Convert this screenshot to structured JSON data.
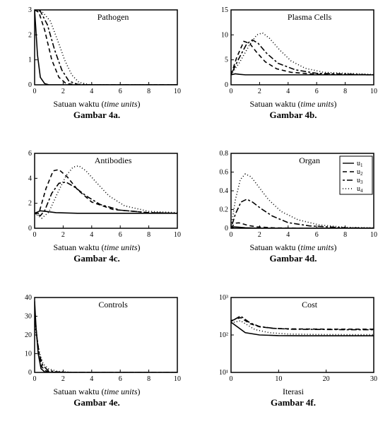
{
  "global": {
    "background": "#ffffff",
    "axis_color": "#000000",
    "tick_color": "#000000",
    "tick_font_size": 10,
    "title_font_size": 12,
    "label_font_size": 12,
    "line_width": 1.6,
    "series_styles": {
      "u1": {
        "color": "#000000",
        "dash": "",
        "label": "u₁"
      },
      "u2": {
        "color": "#000000",
        "dash": "6 4",
        "label": "u₂"
      },
      "u3": {
        "color": "#000000",
        "dash": "3 3 8 3",
        "label": "u₃"
      },
      "u4": {
        "color": "#000000",
        "dash": "1 3",
        "label": "u₄"
      }
    },
    "xlabel_regular": "Satuan waktu (",
    "xlabel_italic": "time units",
    "xlabel_close": ")",
    "xlabel_iterasi": "Iterasi"
  },
  "panels": {
    "a": {
      "title": "Pathogen",
      "caption": "Gambar 4a.",
      "xlim": [
        0,
        10
      ],
      "xtick_step": 2,
      "ylim": [
        0,
        3
      ],
      "ytick_step": 1,
      "xlabel_type": "time",
      "series": {
        "u1": [
          [
            0,
            3.0
          ],
          [
            0.2,
            1.2
          ],
          [
            0.4,
            0.3
          ],
          [
            0.7,
            0.05
          ],
          [
            1.0,
            0.0
          ],
          [
            2,
            0
          ],
          [
            10,
            0
          ]
        ],
        "u2": [
          [
            0,
            3.0
          ],
          [
            0.3,
            2.9
          ],
          [
            0.7,
            2.2
          ],
          [
            1.2,
            1.0
          ],
          [
            1.7,
            0.3
          ],
          [
            2.2,
            0.05
          ],
          [
            3,
            0
          ],
          [
            10,
            0
          ]
        ],
        "u3": [
          [
            0,
            3.0
          ],
          [
            0.4,
            2.95
          ],
          [
            0.9,
            2.4
          ],
          [
            1.4,
            1.4
          ],
          [
            1.9,
            0.6
          ],
          [
            2.4,
            0.15
          ],
          [
            3.0,
            0.02
          ],
          [
            4,
            0
          ],
          [
            10,
            0
          ]
        ],
        "u4": [
          [
            0,
            3.0
          ],
          [
            0.5,
            2.95
          ],
          [
            1.1,
            2.55
          ],
          [
            1.6,
            1.8
          ],
          [
            2.1,
            1.0
          ],
          [
            2.6,
            0.4
          ],
          [
            3.1,
            0.1
          ],
          [
            3.8,
            0.01
          ],
          [
            5,
            0
          ],
          [
            10,
            0
          ]
        ]
      }
    },
    "b": {
      "title": "Plasma Cells",
      "caption": "Gambar 4b.",
      "xlim": [
        0,
        10
      ],
      "xtick_step": 2,
      "ylim": [
        0,
        15
      ],
      "ytick_step": 5,
      "xlabel_type": "time",
      "series": {
        "u1": [
          [
            0,
            2.0
          ],
          [
            0.3,
            2.2
          ],
          [
            0.6,
            2.1
          ],
          [
            1,
            2.0
          ],
          [
            10,
            2.0
          ]
        ],
        "u2": [
          [
            0,
            2.0
          ],
          [
            0.4,
            5.5
          ],
          [
            0.9,
            8.7
          ],
          [
            1.3,
            8.3
          ],
          [
            1.8,
            6.5
          ],
          [
            2.4,
            4.6
          ],
          [
            3.2,
            3.2
          ],
          [
            4.2,
            2.5
          ],
          [
            6,
            2.1
          ],
          [
            10,
            2.0
          ]
        ],
        "u3": [
          [
            0,
            2.0
          ],
          [
            0.5,
            5.0
          ],
          [
            1.1,
            8.2
          ],
          [
            1.5,
            9.0
          ],
          [
            1.9,
            8.3
          ],
          [
            2.5,
            6.3
          ],
          [
            3.3,
            4.3
          ],
          [
            4.5,
            3.0
          ],
          [
            6,
            2.3
          ],
          [
            10,
            2.0
          ]
        ],
        "u4": [
          [
            0,
            2.0
          ],
          [
            0.6,
            4.5
          ],
          [
            1.3,
            8.0
          ],
          [
            1.8,
            10.0
          ],
          [
            2.2,
            10.4
          ],
          [
            2.7,
            9.3
          ],
          [
            3.4,
            7.0
          ],
          [
            4.2,
            4.8
          ],
          [
            5.2,
            3.3
          ],
          [
            6.5,
            2.5
          ],
          [
            10,
            2.05
          ]
        ]
      }
    },
    "c": {
      "title": "Antibodies",
      "caption": "Gambar 4c.",
      "xlim": [
        0,
        10
      ],
      "xtick_step": 2,
      "ylim": [
        0,
        6
      ],
      "ytick_step": 2,
      "xlabel_type": "time",
      "series": {
        "u1": [
          [
            0,
            1.2
          ],
          [
            0.4,
            1.4
          ],
          [
            0.8,
            1.35
          ],
          [
            1.5,
            1.25
          ],
          [
            3,
            1.2
          ],
          [
            10,
            1.2
          ]
        ],
        "u2": [
          [
            0,
            1.2
          ],
          [
            0.3,
            1.2
          ],
          [
            0.8,
            3.2
          ],
          [
            1.3,
            4.6
          ],
          [
            1.7,
            4.7
          ],
          [
            2.3,
            4.1
          ],
          [
            3.0,
            3.1
          ],
          [
            4.0,
            2.1
          ],
          [
            5.5,
            1.5
          ],
          [
            8,
            1.25
          ],
          [
            10,
            1.2
          ]
        ],
        "u3": [
          [
            0,
            1.2
          ],
          [
            0.4,
            1.0
          ],
          [
            0.7,
            1.4
          ],
          [
            1.2,
            2.8
          ],
          [
            1.7,
            3.6
          ],
          [
            2.2,
            3.7
          ],
          [
            2.8,
            3.3
          ],
          [
            3.6,
            2.6
          ],
          [
            4.6,
            1.9
          ],
          [
            6.0,
            1.45
          ],
          [
            8,
            1.25
          ],
          [
            10,
            1.2
          ]
        ],
        "u4": [
          [
            0,
            1.2
          ],
          [
            0.5,
            0.8
          ],
          [
            1.0,
            1.3
          ],
          [
            1.6,
            2.8
          ],
          [
            2.2,
            4.2
          ],
          [
            2.7,
            4.9
          ],
          [
            3.1,
            5.0
          ],
          [
            3.6,
            4.6
          ],
          [
            4.3,
            3.7
          ],
          [
            5.2,
            2.6
          ],
          [
            6.3,
            1.8
          ],
          [
            8,
            1.35
          ],
          [
            10,
            1.25
          ]
        ]
      }
    },
    "d": {
      "title": "Organ",
      "caption": "Gambar 4d.",
      "xlim": [
        0,
        10
      ],
      "xtick_step": 2,
      "ylim": [
        0,
        0.8
      ],
      "ytick_step": 0.2,
      "xlabel_type": "time",
      "show_legend": true,
      "series": {
        "u1": [
          [
            0,
            0.0
          ],
          [
            0.2,
            0.015
          ],
          [
            0.5,
            0.012
          ],
          [
            1,
            0.005
          ],
          [
            2,
            0.001
          ],
          [
            10,
            0
          ]
        ],
        "u2": [
          [
            0,
            0.0
          ],
          [
            0.15,
            0.03
          ],
          [
            0.35,
            0.055
          ],
          [
            0.55,
            0.058
          ],
          [
            0.8,
            0.048
          ],
          [
            1.2,
            0.03
          ],
          [
            1.8,
            0.015
          ],
          [
            3,
            0.004
          ],
          [
            5,
            0.001
          ],
          [
            10,
            0
          ]
        ],
        "u3": [
          [
            0,
            0.0
          ],
          [
            0.3,
            0.15
          ],
          [
            0.7,
            0.28
          ],
          [
            1.1,
            0.31
          ],
          [
            1.5,
            0.28
          ],
          [
            2.1,
            0.21
          ],
          [
            2.9,
            0.13
          ],
          [
            4.0,
            0.06
          ],
          [
            5.5,
            0.025
          ],
          [
            8,
            0.005
          ],
          [
            10,
            0.002
          ]
        ],
        "u4": [
          [
            0,
            0.0
          ],
          [
            0.3,
            0.3
          ],
          [
            0.65,
            0.52
          ],
          [
            1.0,
            0.58
          ],
          [
            1.4,
            0.55
          ],
          [
            1.9,
            0.45
          ],
          [
            2.6,
            0.31
          ],
          [
            3.5,
            0.18
          ],
          [
            4.7,
            0.09
          ],
          [
            6.2,
            0.035
          ],
          [
            8,
            0.01
          ],
          [
            10,
            0.004
          ]
        ]
      }
    },
    "e": {
      "title": "Controls",
      "caption": "Gambar 4e.",
      "xlim": [
        0,
        10
      ],
      "xtick_step": 2,
      "ylim": [
        0,
        40
      ],
      "ytick_step": 10,
      "xlabel_type": "time",
      "series": {
        "u1": [
          [
            0,
            38
          ],
          [
            0.1,
            24
          ],
          [
            0.25,
            10
          ],
          [
            0.45,
            2
          ],
          [
            0.7,
            0.3
          ],
          [
            1,
            0.05
          ],
          [
            2,
            0
          ],
          [
            10,
            0
          ]
        ],
        "u2": [
          [
            0,
            34
          ],
          [
            0.12,
            22
          ],
          [
            0.28,
            10
          ],
          [
            0.5,
            3
          ],
          [
            0.8,
            0.8
          ],
          [
            1.2,
            0.15
          ],
          [
            2,
            0.02
          ],
          [
            10,
            0
          ]
        ],
        "u3": [
          [
            0,
            30
          ],
          [
            0.14,
            20
          ],
          [
            0.32,
            10
          ],
          [
            0.55,
            4
          ],
          [
            0.9,
            1.3
          ],
          [
            1.4,
            0.35
          ],
          [
            2.2,
            0.05
          ],
          [
            4,
            0
          ],
          [
            10,
            0
          ]
        ],
        "u4": [
          [
            0,
            26
          ],
          [
            0.16,
            18
          ],
          [
            0.36,
            10
          ],
          [
            0.6,
            4.5
          ],
          [
            1.0,
            1.8
          ],
          [
            1.6,
            0.6
          ],
          [
            2.5,
            0.1
          ],
          [
            4,
            0.01
          ],
          [
            10,
            0
          ]
        ]
      }
    },
    "f": {
      "title": "Cost",
      "caption": "Gambar 4f.",
      "xlim": [
        0,
        30
      ],
      "xtick_step": 10,
      "ylim_log": [
        10,
        1000
      ],
      "ytick_labels": [
        "10¹",
        "10²",
        "10³"
      ],
      "xlabel_type": "iterasi",
      "series": {
        "u1": [
          [
            0,
            220
          ],
          [
            3,
            115
          ],
          [
            6,
            100
          ],
          [
            10,
            96
          ],
          [
            15,
            95
          ],
          [
            20,
            95
          ],
          [
            30,
            95
          ]
        ],
        "u2": [
          [
            0,
            240
          ],
          [
            2,
            290
          ],
          [
            4,
            200
          ],
          [
            6,
            165
          ],
          [
            9,
            150
          ],
          [
            13,
            145
          ],
          [
            20,
            143
          ],
          [
            30,
            143
          ]
        ],
        "u3": [
          [
            0,
            230
          ],
          [
            2,
            320
          ],
          [
            4,
            210
          ],
          [
            6,
            168
          ],
          [
            9,
            150
          ],
          [
            13,
            142
          ],
          [
            20,
            140
          ],
          [
            25,
            138
          ],
          [
            30,
            138
          ]
        ],
        "u4": [
          [
            0,
            210
          ],
          [
            2,
            240
          ],
          [
            3,
            200
          ],
          [
            5,
            140
          ],
          [
            8,
            115
          ],
          [
            12,
            106
          ],
          [
            18,
            103
          ],
          [
            25,
            102
          ],
          [
            30,
            102
          ]
        ]
      }
    }
  }
}
